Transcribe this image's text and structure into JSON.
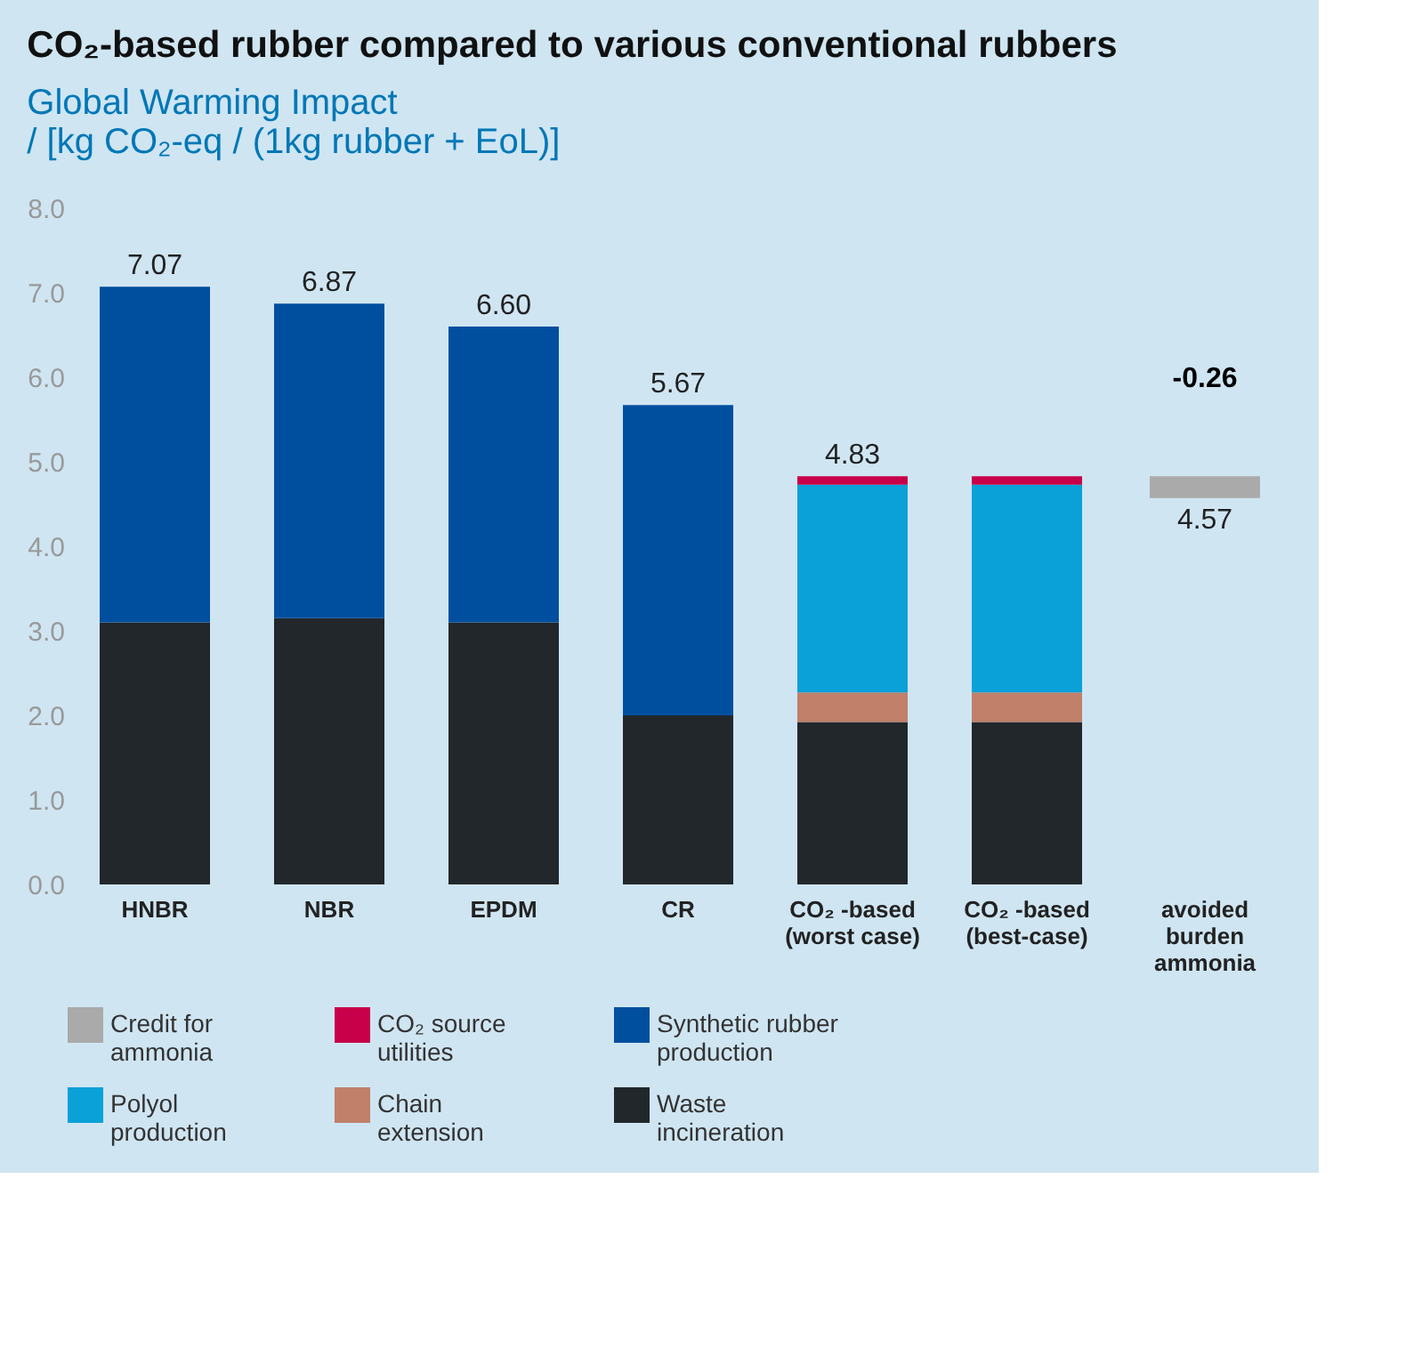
{
  "chart_data": [
    {
      "type": "bar",
      "stacked": true,
      "title": "CO₂-based rubber compared to various conventional rubbers",
      "subtitle": "Global Warming Impact",
      "ylabel": "/ [kg CO₂-eq / (1kg rubber + EoL)]",
      "categories": [
        "HNBR",
        "NBR",
        "EPDM",
        "CR",
        "CO₂ -based\n(worst case)",
        "CO₂ -based\n(best-case)"
      ],
      "series": [
        {
          "name": "Waste\nincineration",
          "color": "#22272b",
          "values": [
            3.1,
            3.15,
            3.1,
            2.0,
            1.92,
            1.92
          ]
        },
        {
          "name": "Chain\nextension",
          "color": "#c0806a",
          "values": [
            null,
            null,
            null,
            null,
            0.35,
            0.35
          ]
        },
        {
          "name": "Polyol\nproduction",
          "color": "#0aa0d8",
          "values": [
            null,
            null,
            null,
            null,
            2.46,
            2.46
          ]
        },
        {
          "name": "Synthetic rubber\nproduction",
          "color": "#004f9f",
          "values": [
            3.97,
            3.72,
            3.5,
            3.67,
            null,
            null
          ]
        },
        {
          "name": "CO₂ source\nutilities",
          "color": "#c8004a",
          "values": [
            null,
            null,
            null,
            null,
            0.1,
            0.1
          ]
        }
      ],
      "totals": [
        "7.07",
        "6.87",
        "6.60",
        "5.67",
        "4.83",
        null
      ],
      "ylim": [
        0,
        8
      ],
      "yticks": [
        {
          "value": 0,
          "label": "0.0"
        },
        {
          "value": 1,
          "label": "1.0"
        },
        {
          "value": 2,
          "label": "2.0"
        },
        {
          "value": 3,
          "label": "3.0"
        },
        {
          "value": 4,
          "label": "4.0"
        },
        {
          "value": 5,
          "label": "5.0"
        },
        {
          "value": 6,
          "label": "6.0"
        },
        {
          "value": 7,
          "label": "7.0"
        },
        {
          "value": 8,
          "label": "8.0"
        }
      ],
      "grid": false,
      "legend": "bottom"
    },
    {
      "type": "bar",
      "categories": [
        "avoided\nburden\nammonia"
      ],
      "series": [
        {
          "name": "Credit for\nammonia",
          "color": "#aaaaaa",
          "base": [
            4.83
          ],
          "values": [
            -0.26
          ],
          "value_labels": [
            "-0.26"
          ]
        }
      ],
      "annotations": [
        "4.57"
      ],
      "ylim": [
        0,
        8
      ],
      "tick_labels": "x",
      "grid": false,
      "legend": "bottom"
    }
  ]
}
